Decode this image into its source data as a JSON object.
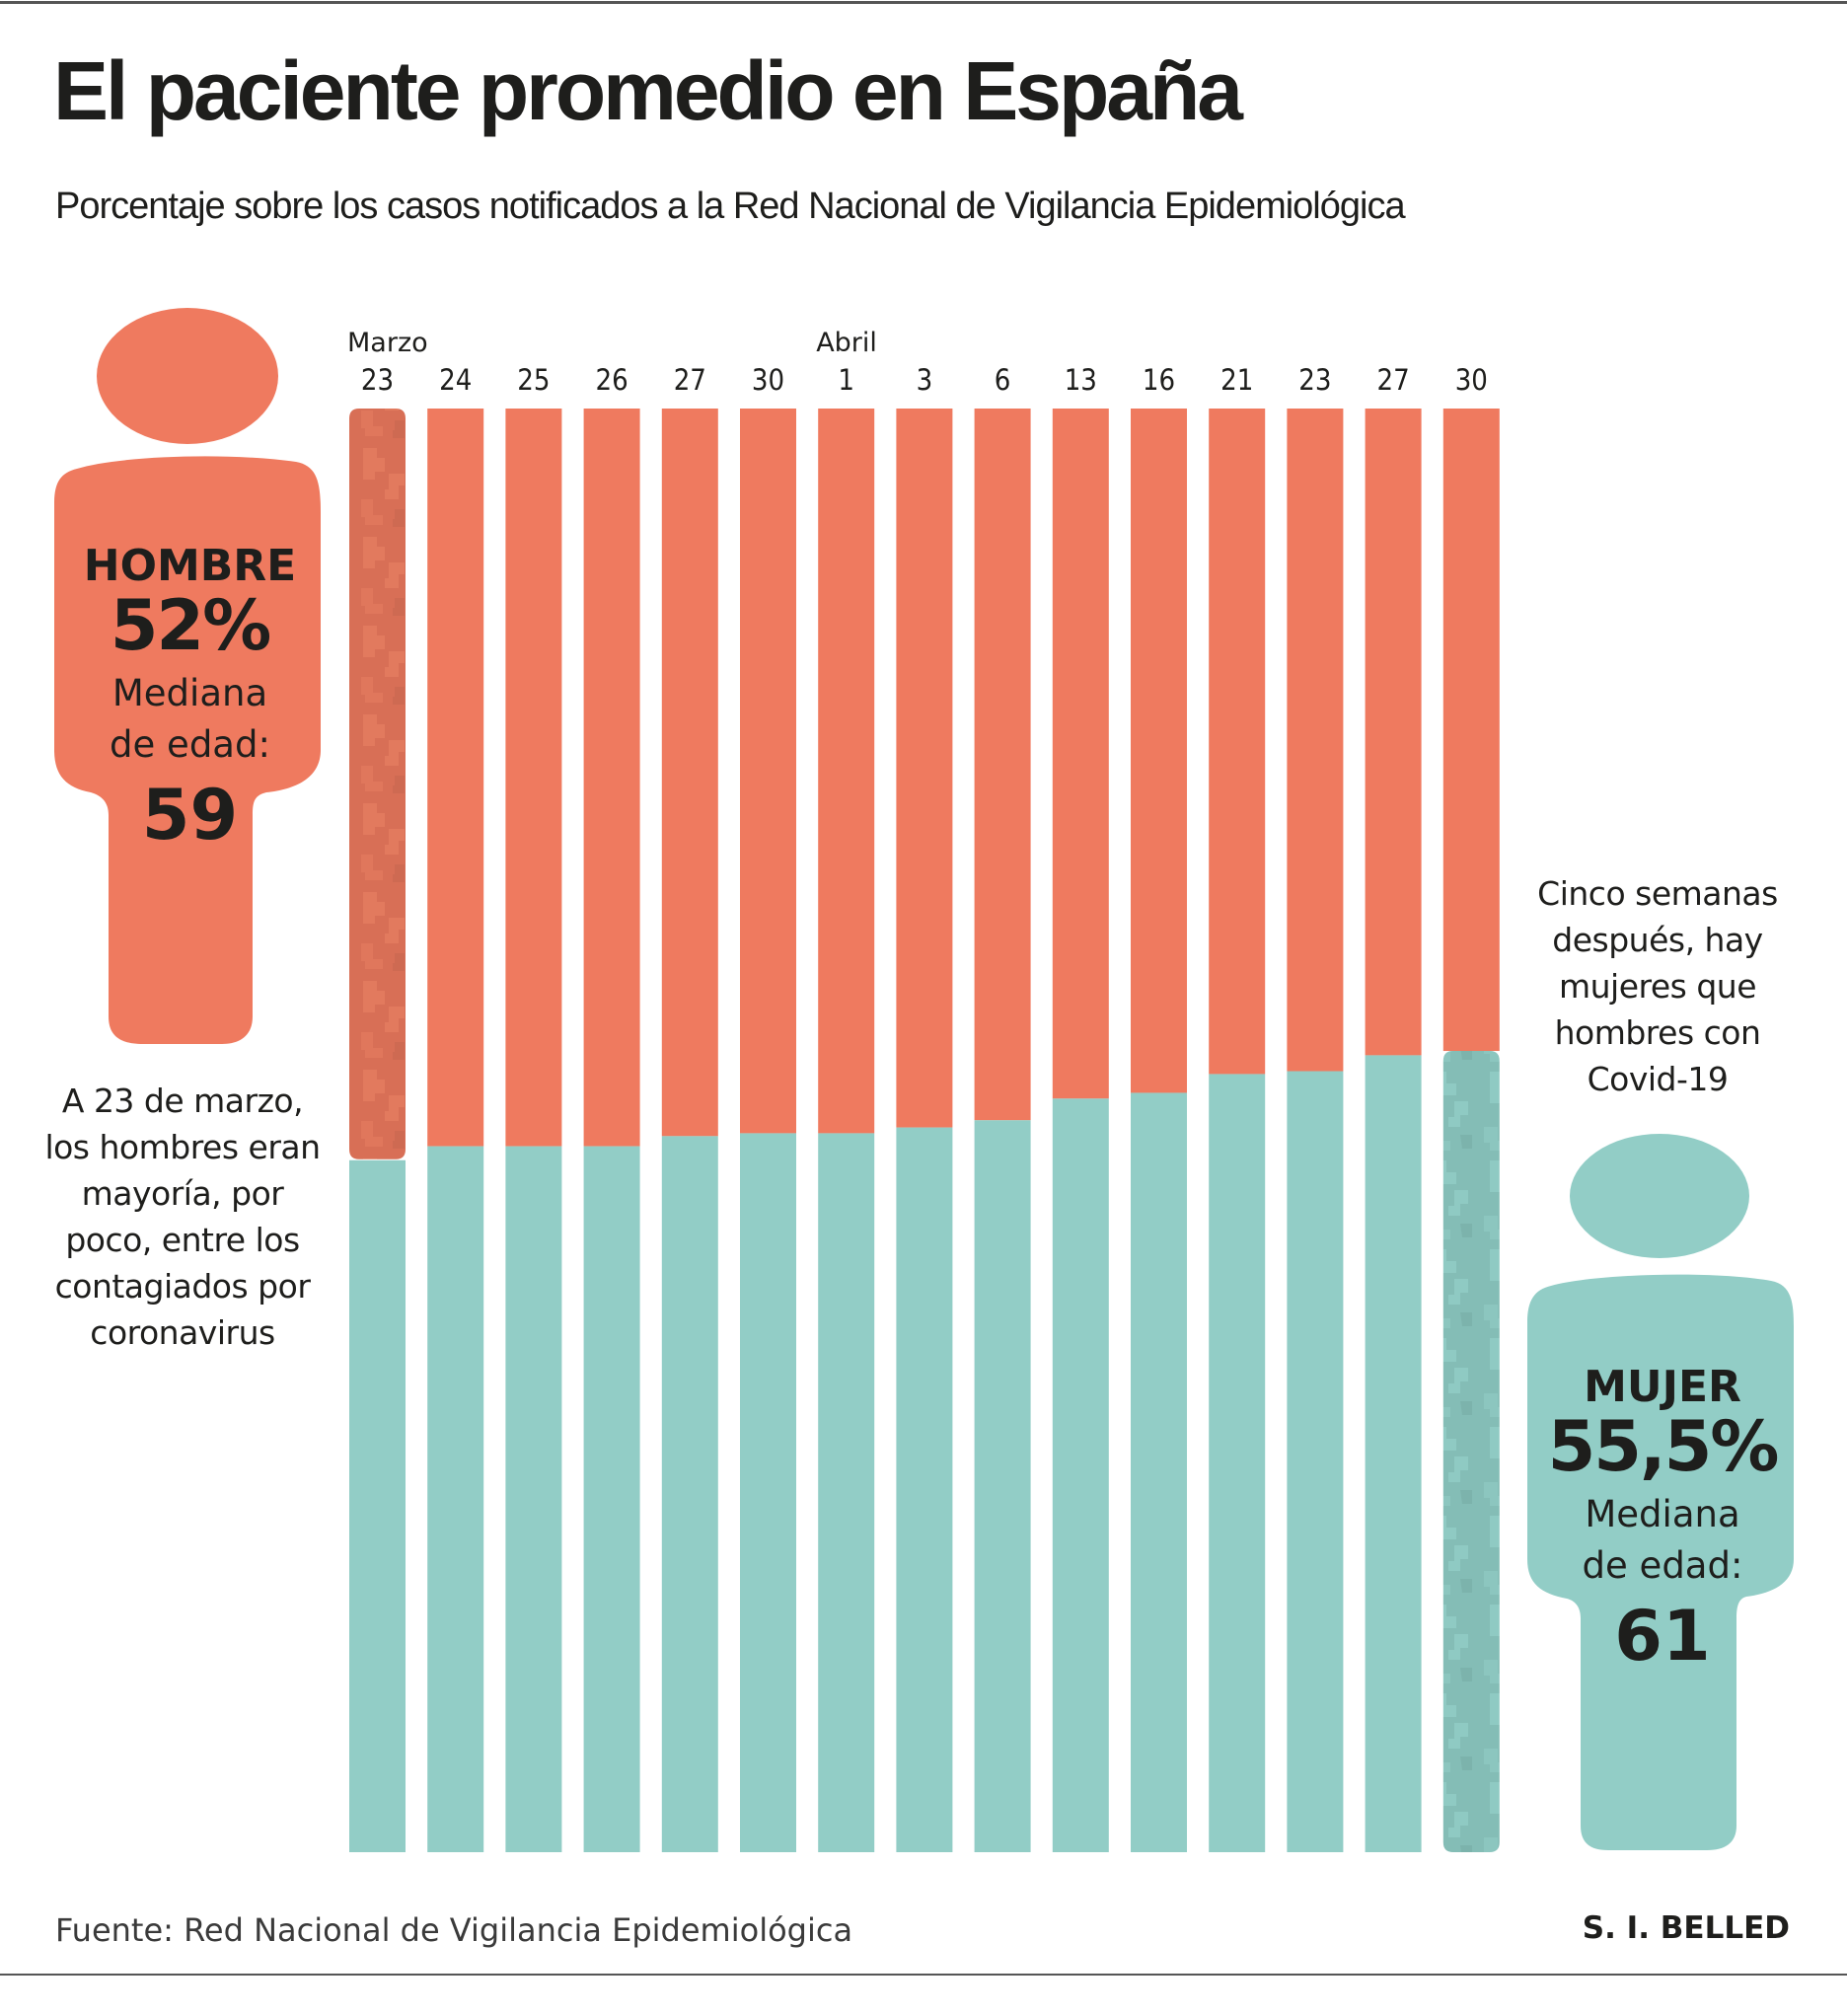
{
  "header": {
    "title": "El paciente promedio en España",
    "subtitle": "Porcentaje sobre los casos notificados a la Red Nacional de Vigilancia Epidemiológica"
  },
  "colors": {
    "male": "#EF7A5F",
    "male_highlight": "#D86F56",
    "female": "#92CDC6",
    "female_highlight": "#84BDB6",
    "text": "#1E1E1C",
    "rule": "#555555"
  },
  "figures": {
    "male": {
      "icon": "person-icon",
      "gender": "HOMBRE",
      "percent": "52%",
      "median_label": "Mediana\nde edad:",
      "median_age": "59"
    },
    "female": {
      "icon": "person-icon",
      "gender": "MUJER",
      "percent": "55,5%",
      "median_label": "Mediana\nde edad:",
      "median_age": "61"
    }
  },
  "annotations": {
    "left": "A 23 de marzo,\nlos hombres eran\nmayoría, por\npoco, entre los\ncontagiados por\ncoronavirus",
    "right": "Cinco semanas\ndespués, hay\nmujeres  que\nhombres con\nCovid-19"
  },
  "footer": {
    "source": "Fuente: Red Nacional de Vigilancia Epidemiológica",
    "credit": "S. I. BELLED"
  },
  "chart_data": {
    "type": "bar",
    "stacked": true,
    "orientation": "vertical",
    "normalized_to": 100,
    "title": "El paciente promedio en España",
    "subtitle": "Porcentaje sobre los casos notificados a la Red Nacional de Vigilancia Epidemiológica",
    "xlabel": "",
    "ylabel": "",
    "ylim": [
      0,
      100
    ],
    "grid": false,
    "month_labels": [
      {
        "label": "Marzo",
        "category_index": 0
      },
      {
        "label": "Abril",
        "category_index": 6
      }
    ],
    "categories": [
      "23",
      "24",
      "25",
      "26",
      "27",
      "30",
      "1",
      "3",
      "6",
      "13",
      "16",
      "21",
      "23",
      "27",
      "30"
    ],
    "series": [
      {
        "name": "Hombre",
        "position": "top",
        "values": [
          52.0,
          51.1,
          51.1,
          51.1,
          50.4,
          50.2,
          50.2,
          49.8,
          49.3,
          47.8,
          47.4,
          46.1,
          45.9,
          44.8,
          44.5
        ]
      },
      {
        "name": "Mujer",
        "position": "bottom",
        "values": [
          48.0,
          48.9,
          48.9,
          48.9,
          49.6,
          49.8,
          49.8,
          50.2,
          50.7,
          52.2,
          52.6,
          53.9,
          54.1,
          55.2,
          55.5
        ]
      }
    ],
    "highlighted": [
      {
        "category_index": 0,
        "series": "Hombre"
      },
      {
        "category_index": 14,
        "series": "Mujer"
      }
    ]
  }
}
